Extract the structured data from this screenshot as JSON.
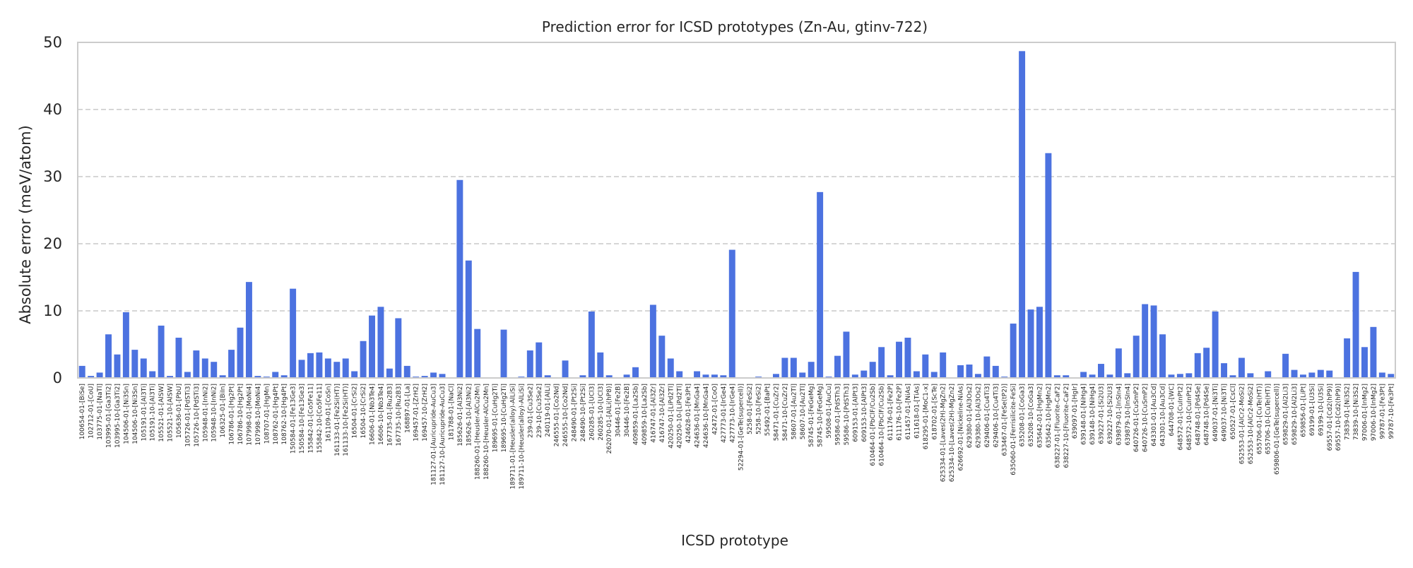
{
  "chart_data": {
    "type": "bar",
    "title": "Prediction error for ICSD prototypes (Zn-Au, gtinv-722)",
    "xlabel": "ICSD prototype",
    "ylabel": "Absolute error (meV/atom)",
    "ylim": [
      0,
      50
    ],
    "yticks": [
      0,
      10,
      20,
      30,
      40,
      50
    ],
    "grid": "y-dashed",
    "bar_color": "#4c72e0",
    "grid_color": "#c8c8c8",
    "categories": [
      "100654-01-[BiSe]",
      "102712-01-[CoU]",
      "103775-01-[NaTl]",
      "103995-01-[Ga3Ti2]",
      "103995-10-[Ga3Ti2]",
      "104506-01-[Ni3Sn]",
      "104506-10-[Ni3Sn]",
      "105191-01-[Al3Ti]",
      "105191-10-[Al3Ti]",
      "105521-01-[AlSW]",
      "105521-10-[AlSW]",
      "105636-01-[PbU]",
      "105726-01-[PdSTi3]",
      "105726-10-[PdSTi3]",
      "105948-01-[InNi2]",
      "105948-10-[InNi2]",
      "106325-01-[BiIn]",
      "106786-01-[Hg2Pt]",
      "106786-10-[Hg2Pt]",
      "107998-01-[MoNi4]",
      "107998-10-[MoNi4]",
      "108707-01-[HgMn]",
      "108762-01-[Hg4Pt]",
      "108762-10-[Hg4Pt]",
      "150584-01-[Fe13Ge3]",
      "150584-10-[Fe13Ge3]",
      "155842-01-[Co5Fe11]",
      "155842-10-[Co5Fe11]",
      "161109-01-[CoSn]",
      "161133-01-[Fe2Si(HT)]",
      "161133-10-[Fe2Si(HT)]",
      "16504-01-[CrSi2]",
      "16504-10-[CrSi2]",
      "16606-01-[Nb3Te4]",
      "16606-10-[Nb3Te4]",
      "167735-01-[Ru2B3]",
      "167735-10-[Ru2B3]",
      "168897-01-[La]",
      "169457-01-[ZrH2]",
      "169457-10-[ZrH2]",
      "181127-01-[Auricupride-AuCu3]",
      "181127-10-[Auricupride-AuCu3]",
      "181788-01-[NaCl]",
      "185626-01-[Al3Ni2]",
      "185626-10-[Al3Ni2]",
      "188260-01-[Heusler-AlCu2Mn]",
      "188260-10-[Heusler-AlCu2Mn]",
      "189695-01-[CuHg2Ti]",
      "189695-10-[CuHg2Ti]",
      "189711-01-[Heusler(alloy)-AlLiSi]",
      "189711-10-[Heusler(alloy)-AlLiSi]",
      "239-01-[Cu3Se2]",
      "239-10-[Cu3Se2]",
      "240119-01-[AlLi]",
      "246555-01-[Co2Nd]",
      "246555-10-[Co2Nd]",
      "248490-01-[Pt2Si]",
      "248490-10-[Pt2Si]",
      "260285-01-[UCl3]",
      "260285-10-[UCl3]",
      "262070-01-[AlLi(hP8)]",
      "30446-01-[Fe2B]",
      "30446-10-[Fe2B]",
      "409859-01-[La2Sb]",
      "409859-10-[La2Sb]",
      "416747-01-[Al3Zr]",
      "416747-10-[Al3Zr]",
      "420250-01-[LiPd2Tl]",
      "420250-10-[LiPd2Tl]",
      "424628-01-[Fe3Pt]",
      "424636-01-[MnGa4]",
      "424636-10-[MnGa4]",
      "42472-01-[CoO]",
      "427773-01-[IrGe4]",
      "427773-10-[IrGe4]",
      "52294-01-[GeTe(supercell)]",
      "5258-01-[FeSi2]",
      "5258-10-[FeSi2]",
      "55492-01-[BaPt]",
      "58471-01-[CuZr2]",
      "58471-10-[CuZr2]",
      "58607-01-[Au2Tl]",
      "58607-10-[Au2Tl]",
      "58745-01-[FeGeMg]",
      "58745-10-[FeGeMg]",
      "59508-01-[AuCu]",
      "59586-01-[PdSTh3]",
      "59586-10-[PdSTh3]",
      "609153-01-[AlPt3]",
      "609153-10-[AlPt3]",
      "610464-01-[PbClF/Cu2Sb]",
      "610464-10-[PbClF/Cu2Sb]",
      "611176-01-[Fe2P]",
      "611176-10-[Fe2P]",
      "611457-01-[NiAs]",
      "611618-01-[TiAs]",
      "618295-01-[MoC1-x]",
      "618702-01-[ScTe]",
      "625334-01-[Laves(2H)-MgZn2]",
      "625334-10-[Laves(2H)-MgZn2]",
      "626692-01-[Nickeline-NiAs]",
      "629380-01-[Al3Os2]",
      "629380-10-[Al3Os2]",
      "629406-01-[Cu4Ti3]",
      "629406-10-[Cu4Ti3]",
      "633467-01-[FeSe(tP2)]",
      "635060-01-[Ferrisilicite-FeSi]",
      "635208-01-[CoGa3]",
      "635208-10-[CoGa3]",
      "635642-01-[HgMn2]",
      "635642-10-[HgMn2]",
      "638227-01-[Fluorite-CaF2]",
      "638227-10-[Fluorite-CaF2]",
      "639097-01-[HgIr]",
      "639148-01-[NiHg4]",
      "639148-10-[NiHg4]",
      "639227-01-[Si2U3]",
      "639227-10-[Si2U3]",
      "639879-01-[InSIn4]",
      "639879-10-[InSIn4]",
      "640726-01-[CuSmP2]",
      "640726-10-[CuSmP2]",
      "643301-01-[Au3Cd]",
      "643301-10-[Au3Cd]",
      "644708-01-[WC]",
      "648572-01-[CuInPt2]",
      "648572-10-[CuInPt2]",
      "648748-01-[Pd4Se]",
      "648748-10-[Pd4Se]",
      "649037-01-[Ni3Ti]",
      "649037-10-[Ni3Ti]",
      "650527-01-[CsCl]",
      "652553-01-[AlCr2-MoSi2]",
      "652553-10-[AlCr2-MoSi2]",
      "655706-01-[CuTe(HT)]",
      "655706-10-[CuTe(HT)]",
      "659806-01-[GeTe(supercell)]",
      "659829-01-[Al2Li3]",
      "659829-10-[Al2Li3]",
      "659856-01-[LiPt]",
      "69199-01-[U3Si]",
      "69199-10-[U3Si]",
      "69557-01-[Cd2(hP9)]",
      "69557-10-[Cd2(hP9)]",
      "73839-01-[Ni3S2]",
      "73839-10-[Ni3S2]",
      "97006-01-[InMg2]",
      "97006-10-[InMg2]",
      "99787-01-[Fe3Pt]",
      "99787-10-[Fe3Pt]"
    ],
    "values": [
      1.8,
      0.3,
      0.8,
      6.5,
      3.5,
      9.8,
      4.2,
      2.9,
      1.0,
      7.8,
      0.3,
      6.0,
      0.9,
      4.1,
      2.9,
      2.4,
      0.4,
      4.2,
      7.5,
      14.3,
      0.3,
      0.2,
      0.9,
      0.4,
      13.3,
      2.7,
      3.7,
      3.8,
      2.9,
      2.4,
      2.9,
      1.0,
      5.5,
      9.3,
      10.6,
      1.4,
      8.9,
      1.8,
      0.2,
      0.3,
      0.8,
      0.6,
      0.1,
      29.5,
      17.5,
      7.3,
      0.1,
      0.1,
      7.2,
      0.1,
      0.2,
      4.1,
      5.3,
      0.4,
      0.1,
      2.6,
      0.1,
      0.4,
      9.9,
      3.8,
      0.4,
      0.1,
      0.5,
      1.6,
      0.1,
      10.9,
      6.3,
      2.9,
      1.0,
      0.1,
      1.0,
      0.5,
      0.5,
      0.4,
      19.1,
      0.1,
      0.1,
      0.2,
      0.1,
      0.6,
      3.0,
      3.0,
      0.8,
      2.4,
      27.7,
      0.2,
      3.3,
      6.9,
      0.5,
      1.1,
      2.4,
      4.6,
      0.4,
      5.4,
      6.0,
      1.0,
      3.5,
      0.9,
      3.8,
      0.1,
      1.9,
      2.0,
      0.6,
      3.2,
      1.8,
      0.2,
      8.1,
      48.7,
      10.2,
      10.6,
      33.5,
      0.4,
      0.4,
      0.1,
      0.9,
      0.5,
      2.1,
      0.5,
      4.4,
      0.7,
      6.3,
      11.0,
      10.8,
      6.5,
      0.5,
      0.6,
      0.7,
      3.7,
      4.5,
      9.9,
      2.2,
      0.4,
      3.0,
      0.7,
      0.1,
      1.0,
      0.1,
      3.6,
      1.2,
      0.5,
      0.8,
      1.2,
      1.1,
      0.1,
      5.9,
      15.8,
      4.6,
      7.6,
      0.8,
      0.6
    ]
  }
}
